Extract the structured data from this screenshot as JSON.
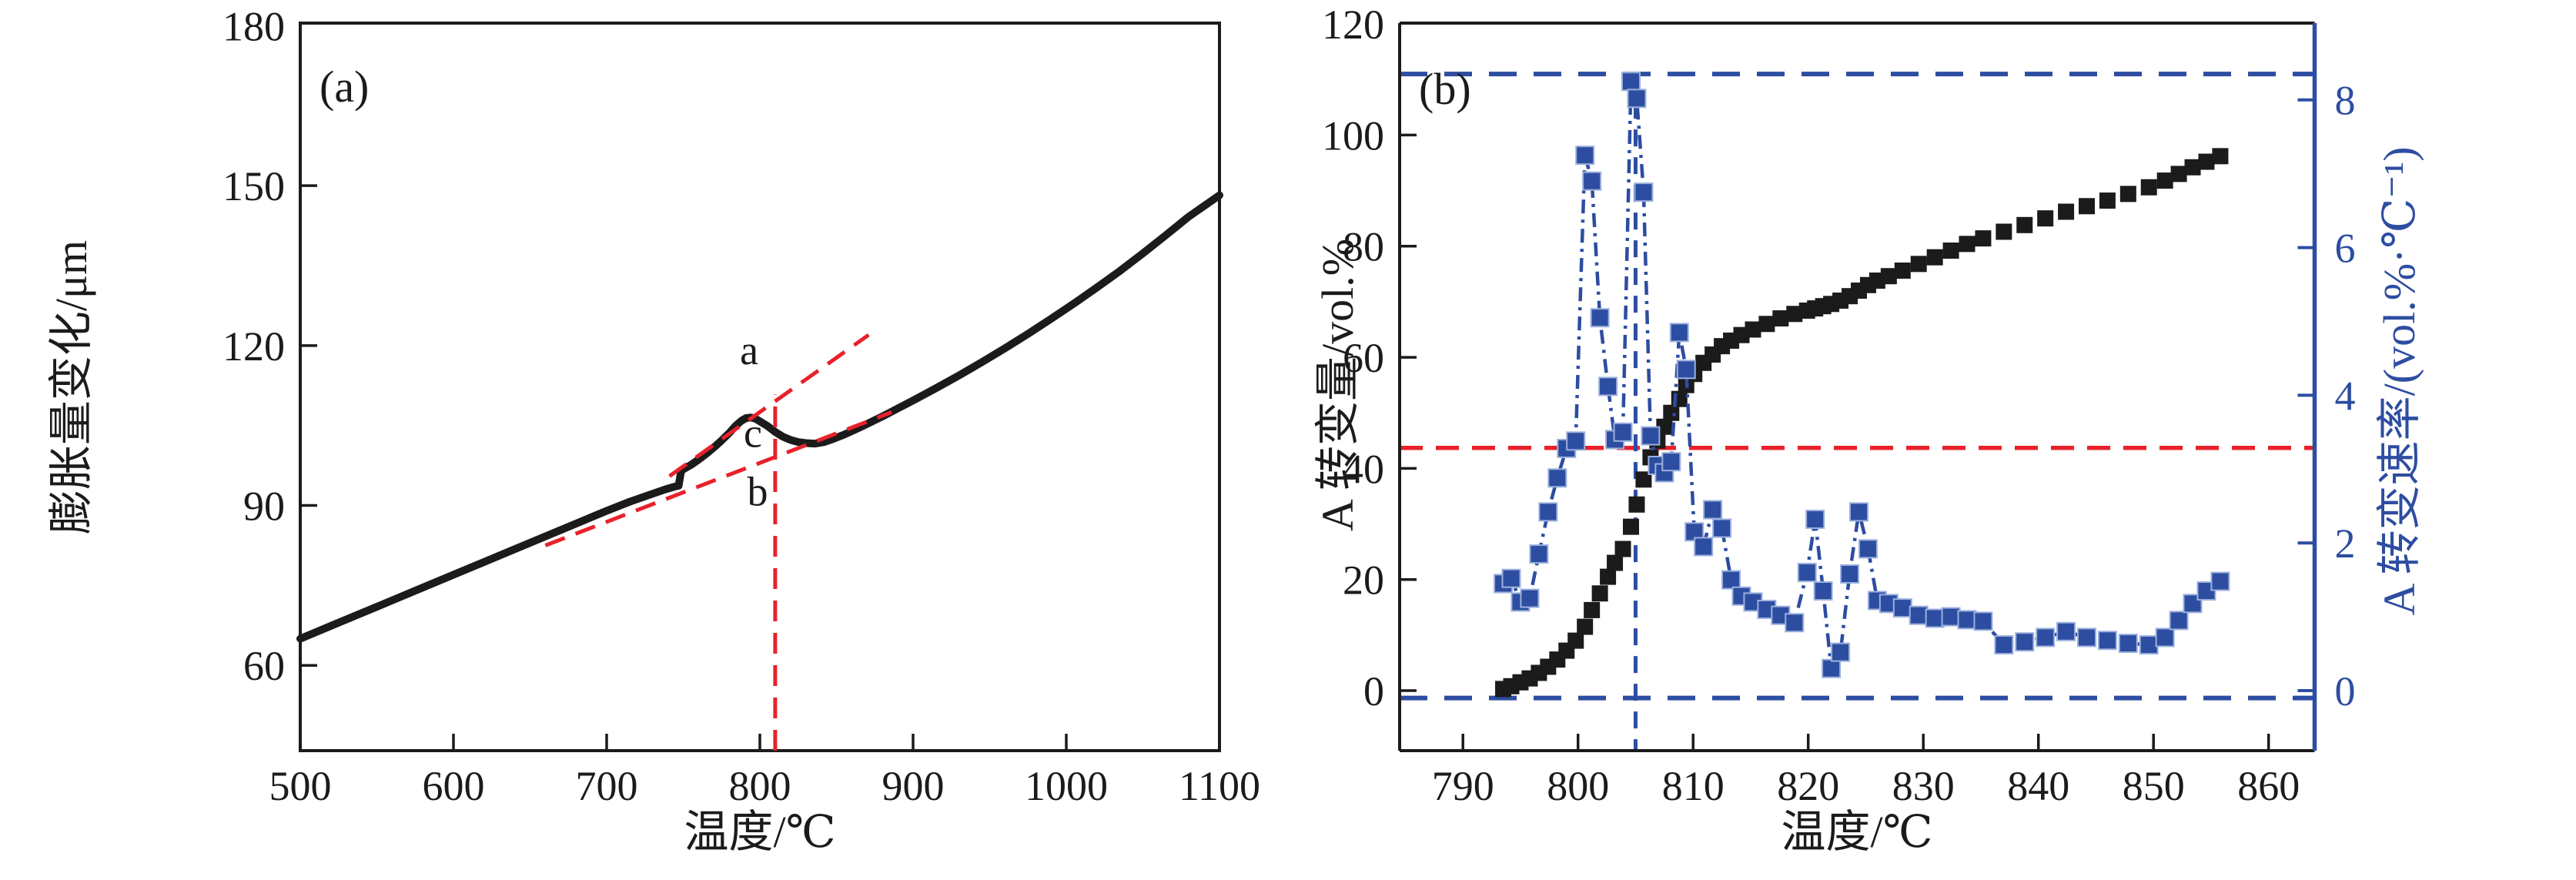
{
  "page": {
    "background": "#ffffff"
  },
  "figure": {
    "panel_a": {
      "label": "(a)",
      "xlabel": "温度/℃",
      "ylabel": "膨胀量变化/μm",
      "annotation_labels": {
        "a": "a",
        "b": "b",
        "c": "c"
      }
    },
    "panel_b": {
      "label": "(b)",
      "xlabel": "温度/℃",
      "ylabel_left": "A 转变量/vol.%",
      "ylabel_right": "A 转变速率/(vol.%·℃⁻¹)"
    },
    "colors": {
      "black": "#1b1b1b",
      "red": "#e8212b",
      "blue": "#2d4da1",
      "blue_marker_edge": "#9cb0de"
    }
  },
  "chart_data": [
    {
      "type": "line",
      "panel": "a",
      "title": "(a)",
      "xlabel": "温度/℃",
      "ylabel": "膨胀量变化/μm",
      "xlim": [
        500,
        1100
      ],
      "ylim": [
        44,
        180.5
      ],
      "xticks": [
        500,
        600,
        700,
        800,
        900,
        1000,
        1100
      ],
      "yticks": [
        60,
        90,
        120,
        150,
        180
      ],
      "grid": false,
      "legend": false,
      "series": [
        {
          "name": "dilation_curve",
          "color": "#1b1b1b",
          "style": "thick_line",
          "x": [
            500,
            525,
            550,
            575,
            600,
            625,
            650,
            675,
            700,
            715,
            730,
            738,
            744,
            747,
            748.5,
            750,
            755,
            760,
            765,
            770,
            775,
            780,
            784,
            788,
            791,
            794,
            797,
            800,
            805,
            810,
            815,
            820,
            825,
            830,
            836,
            842,
            848,
            855,
            862,
            870,
            880,
            890,
            900,
            915,
            930,
            945,
            960,
            975,
            990,
            1005,
            1020,
            1035,
            1050,
            1065,
            1080,
            1100
          ],
          "y": [
            65,
            68,
            71,
            74,
            77,
            80,
            83,
            86,
            89,
            90.7,
            92.2,
            93,
            93.5,
            93.7,
            96.3,
            96.8,
            97.6,
            98.6,
            99.7,
            100.9,
            102.2,
            103.6,
            104.9,
            105.9,
            106.4,
            106.5,
            106.3,
            105.8,
            104.9,
            103.8,
            102.9,
            102.3,
            101.9,
            101.7,
            101.6,
            101.9,
            102.5,
            103.3,
            104.2,
            105.3,
            106.7,
            108.2,
            109.7,
            112,
            114.4,
            116.9,
            119.5,
            122.2,
            125,
            127.9,
            130.9,
            134,
            137.3,
            140.7,
            144.2,
            148.2
          ]
        }
      ],
      "annotations": {
        "tangent_line_a": {
          "x": [
            741,
            871
          ],
          "y": [
            95.5,
            122
          ],
          "color": "#e8212b",
          "dashed": true
        },
        "tangent_line_b": {
          "x": [
            660,
            886
          ],
          "y": [
            82.5,
            107.5
          ],
          "color": "#e8212b",
          "dashed": true
        },
        "vline": {
          "x": 810,
          "y": [
            44,
            110.8
          ],
          "color": "#e8212b",
          "dashed": true
        },
        "label_a": {
          "text": "a",
          "x": 793,
          "y": 116.5
        },
        "label_c": {
          "text": "c",
          "x": 795.5,
          "y": 101
        },
        "label_b": {
          "text": "b",
          "x": 798.5,
          "y": 90
        }
      }
    },
    {
      "type": "scatter_line_dual_axis",
      "panel": "b",
      "title": "(b)",
      "xlabel": "温度/℃",
      "ylabel_left": "A 转变量/vol.%",
      "ylabel_right": "A 转变速率/(vol.%·℃⁻¹)",
      "xlim": [
        784.5,
        864
      ],
      "ylim_left": [
        -10.8,
        120.15
      ],
      "ylim_right": [
        -0.813,
        9.04
      ],
      "xticks": [
        790,
        800,
        810,
        820,
        830,
        840,
        850,
        860
      ],
      "yticks_left": [
        0,
        20,
        40,
        60,
        80,
        100,
        120
      ],
      "yticks_right": [
        0,
        2,
        4,
        6,
        8
      ],
      "grid": false,
      "x": [
        793.5,
        794.2,
        795.0,
        795.8,
        796.6,
        797.4,
        798.2,
        799.0,
        799.8,
        800.6,
        801.2,
        801.9,
        802.6,
        803.2,
        803.9,
        804.6,
        805.1,
        805.7,
        806.3,
        806.9,
        807.5,
        808.1,
        808.8,
        809.4,
        810.1,
        810.9,
        811.7,
        812.5,
        813.3,
        814.2,
        815.2,
        816.4,
        817.6,
        818.8,
        819.9,
        820.6,
        821.3,
        822.0,
        822.8,
        823.6,
        824.4,
        825.2,
        826.0,
        827.0,
        828.2,
        829.6,
        831.0,
        832.4,
        833.8,
        835.2,
        837.0,
        838.8,
        840.6,
        842.4,
        844.2,
        846.0,
        847.8,
        849.6,
        851.0,
        852.2,
        853.4,
        854.6,
        855.8
      ],
      "series": [
        {
          "name": "A_transformation_amount",
          "axis": "left",
          "marker": "square",
          "line": "none",
          "color": "#1b1b1b",
          "values": [
            0.3,
            0.8,
            1.5,
            2.2,
            3.2,
            4.3,
            5.6,
            7.2,
            9.0,
            11.5,
            14.5,
            17.5,
            20.5,
            23.0,
            25.5,
            29.5,
            33.5,
            38.0,
            42.0,
            45.0,
            47.5,
            50.0,
            52.5,
            55.0,
            57.0,
            59.0,
            60.5,
            62.0,
            63.0,
            64.0,
            65.0,
            66.0,
            67.0,
            67.8,
            68.4,
            68.8,
            69.2,
            69.6,
            70.2,
            71.0,
            72.0,
            73.0,
            73.8,
            74.6,
            75.6,
            76.8,
            78.0,
            79.2,
            80.4,
            81.4,
            82.6,
            83.8,
            85.0,
            86.2,
            87.2,
            88.2,
            89.4,
            90.6,
            91.8,
            93.0,
            94.2,
            95.2,
            96.2
          ]
        },
        {
          "name": "A_transformation_rate",
          "axis": "right",
          "marker": "square",
          "line": "dash_dot",
          "color": "#2d4da1",
          "values": [
            1.45,
            1.52,
            1.2,
            1.25,
            1.85,
            2.42,
            2.88,
            3.28,
            3.38,
            7.25,
            6.9,
            5.05,
            4.12,
            3.4,
            3.5,
            8.25,
            8.02,
            6.75,
            3.45,
            3.05,
            2.95,
            3.1,
            4.85,
            4.35,
            2.15,
            1.95,
            2.45,
            2.2,
            1.5,
            1.28,
            1.2,
            1.1,
            1.02,
            0.92,
            1.6,
            2.32,
            1.35,
            0.3,
            0.52,
            1.58,
            2.42,
            1.92,
            1.22,
            1.18,
            1.12,
            1.02,
            0.98,
            1.0,
            0.96,
            0.94,
            0.62,
            0.66,
            0.72,
            0.8,
            0.72,
            0.68,
            0.64,
            0.62,
            0.72,
            0.95,
            1.18,
            1.35,
            1.48
          ]
        }
      ],
      "guides": {
        "hline_red_left_value": 43.7,
        "hline_blue_top_right_value": 8.35,
        "hline_blue_bottom_right_value": -0.1,
        "vline_blue_x": 805
      }
    }
  ]
}
